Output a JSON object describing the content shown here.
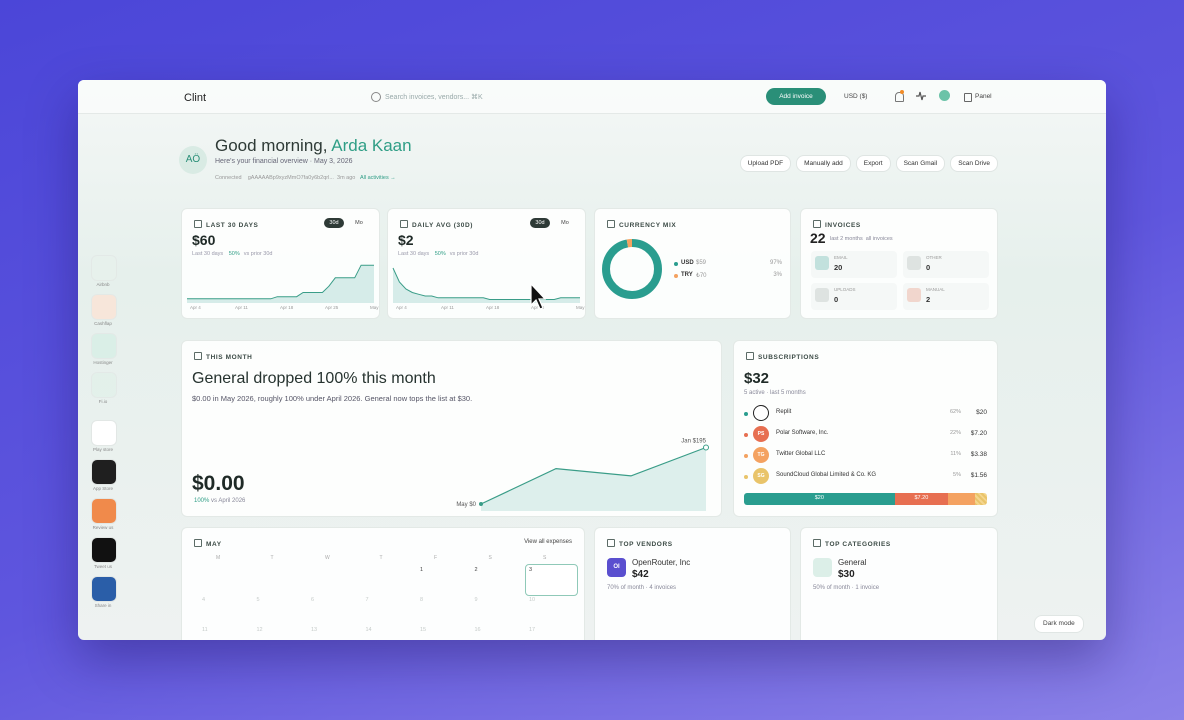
{
  "header": {
    "brand": "Clint",
    "search": "Search invoices, vendors... ⌘K",
    "add_invoice": "Add invoice",
    "currency": "USD ($)",
    "panel": "Panel"
  },
  "sidebar": {
    "apps": [
      "Airbnb",
      "Cashflap",
      "Hostinger",
      "Fi.io",
      "Play store",
      "App Store",
      "Review us",
      "Tweet us",
      "Share in"
    ]
  },
  "greeting": {
    "avatar": "AÖ",
    "hello": "Good morning,",
    "name": "Arda Kaan",
    "subtitle": "Here's your financial overview · May 3, 2026",
    "connected": "Connected",
    "token": "gAAAAABp9xyzMmO7fa0y6b2qrl...",
    "time": "3m ago",
    "all_activities": "All activities →"
  },
  "actions": [
    "Upload PDF",
    "Manually add",
    "Export",
    "Scan Gmail",
    "Scan Drive"
  ],
  "cards": {
    "last30": {
      "title": "LAST 30 DAYS",
      "toggle": [
        "30d",
        "Mo"
      ],
      "amount": "$60",
      "period": "Last 30 days",
      "change": "50%",
      "compare": "vs prior 30d",
      "chart": {
        "values": [
          2,
          2,
          2,
          2,
          2,
          2,
          2,
          2,
          2,
          2,
          2,
          2,
          2,
          2,
          3,
          3,
          3,
          3,
          5,
          5,
          5,
          5,
          8,
          12,
          12,
          12,
          12,
          18,
          18,
          18
        ],
        "ylim": [
          0,
          20
        ],
        "x_labels": [
          "Apr 4",
          "Apr 11",
          "Apr 18",
          "Apr 25",
          "May"
        ]
      }
    },
    "daily": {
      "title": "DAILY AVG (30D)",
      "toggle": [
        "30d",
        "Mo"
      ],
      "amount": "$2",
      "period": "Last 30 days",
      "change": "50%",
      "compare": "vs prior 30d",
      "chart": {
        "values": [
          20,
          12,
          8,
          6,
          5,
          4,
          4,
          3,
          3,
          3,
          3,
          3,
          3,
          3,
          3,
          2,
          2,
          2,
          2,
          2,
          2,
          2,
          2,
          2,
          2,
          2,
          3,
          3,
          3,
          3
        ],
        "ylim": [
          0,
          24
        ],
        "x_labels": [
          "Apr 4",
          "Apr 11",
          "Apr 18",
          "Apr 25",
          "May"
        ]
      }
    },
    "currency": {
      "title": "CURRENCY MIX",
      "items": [
        {
          "code": "USD",
          "amount": "$59",
          "pct": 97,
          "pct_label": "97%",
          "color": "#2a9d8f"
        },
        {
          "code": "TRY",
          "amount": "₺70",
          "pct": 3,
          "pct_label": "3%",
          "color": "#f4a261"
        }
      ]
    },
    "invoices": {
      "title": "INVOICES",
      "count": "22",
      "period": "last 2 months",
      "scope": "all invoices",
      "sources": [
        {
          "label": "EMAIL",
          "value": "20",
          "color": "#2a9d8f"
        },
        {
          "label": "OTHER",
          "value": "0",
          "color": "#9aa5a1"
        },
        {
          "label": "UPLOADS",
          "value": "0",
          "color": "#9aa5a1"
        },
        {
          "label": "MANUAL",
          "value": "2",
          "color": "#e76f51"
        }
      ]
    }
  },
  "this_month": {
    "title": "THIS MONTH",
    "headline": "General dropped 100% this month",
    "description": "$0.00 in May 2026, roughly 100% under April 2026. General now tops the list at $30.",
    "amount": "$0.00",
    "change": "100%",
    "compare": "vs April 2026",
    "chart": {
      "values": [
        0,
        122,
        97,
        195
      ],
      "ylim": [
        0,
        200
      ],
      "start_label": "May $0",
      "end_label": "Jan $195"
    }
  },
  "subscriptions": {
    "title": "SUBSCRIPTIONS",
    "total": "$32",
    "meta": "5 active · last 5 months",
    "items": [
      {
        "name": "Replit",
        "pct": 62,
        "pct_label": "62%",
        "amount": "$20",
        "color": "#2a9d8f"
      },
      {
        "name": "Polar Software, Inc.",
        "logo": "PS",
        "pct": 22,
        "pct_label": "22%",
        "amount": "$7.20",
        "color": "#e76f51"
      },
      {
        "name": "Twitter Global LLC",
        "logo": "TG",
        "pct": 11,
        "pct_label": "11%",
        "amount": "$3.38",
        "color": "#f4a261"
      },
      {
        "name": "SoundCloud Global Limited & Co. KG",
        "logo": "SG",
        "pct": 5,
        "pct_label": "5%",
        "amount": "$1.56",
        "color": "#e9c46a"
      }
    ]
  },
  "calendar": {
    "title": "MAY",
    "link": "View all expenses",
    "weekdays": [
      "M",
      "T",
      "W",
      "T",
      "F",
      "S",
      "S"
    ],
    "weeks": [
      [
        null,
        null,
        null,
        null,
        1,
        2,
        3
      ],
      [
        4,
        5,
        6,
        7,
        8,
        9,
        10
      ],
      [
        11,
        12,
        13,
        14,
        15,
        16,
        17
      ]
    ],
    "today": 3
  },
  "top_vendors": {
    "title": "TOP VENDORS",
    "logo": "OI",
    "name": "OpenRouter, Inc",
    "amount": "$42",
    "meta": "70% of month · 4 invoices"
  },
  "top_categories": {
    "title": "TOP CATEGORIES",
    "name": "General",
    "amount": "$30",
    "meta": "50% of month · 1 invoice"
  },
  "dark_mode": "Dark mode"
}
